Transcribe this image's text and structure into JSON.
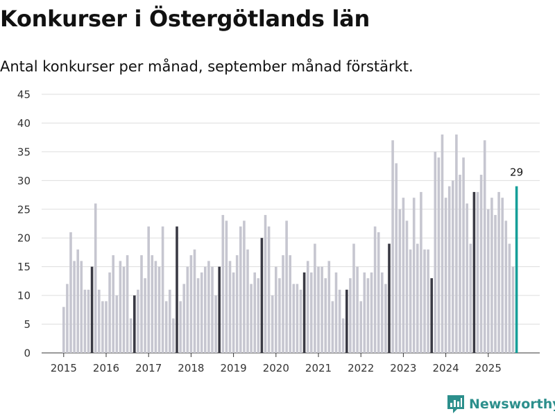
{
  "title": "Konkurser i Östergötlands län",
  "subtitle": "Antal konkurser per månad, september månad förstärkt.",
  "brand": "Newsworthy",
  "colors": {
    "bar": "#c6c6d0",
    "highlight": "#3a3a44",
    "latest": "#159f99",
    "grid": "#dddddd",
    "brand": "#2c8f8c"
  },
  "chart_data": {
    "type": "bar",
    "title": "Konkurser i Östergötlands län",
    "ylabel": "",
    "xlabel": "",
    "ylim": [
      0,
      45
    ],
    "yticks": [
      0,
      5,
      10,
      15,
      20,
      25,
      30,
      35,
      40,
      45
    ],
    "grid": true,
    "start": "2015-01",
    "highlight_month": "september",
    "year_labels": [
      "2015",
      "2016",
      "2017",
      "2018",
      "2019",
      "2020",
      "2021",
      "2022",
      "2023",
      "2024",
      "2025"
    ],
    "values": [
      8,
      12,
      21,
      16,
      18,
      16,
      11,
      11,
      15,
      26,
      11,
      9,
      9,
      14,
      17,
      10,
      16,
      15,
      17,
      6,
      10,
      11,
      17,
      13,
      22,
      17,
      16,
      15,
      22,
      9,
      11,
      6,
      22,
      9,
      12,
      15,
      17,
      18,
      13,
      14,
      15,
      16,
      15,
      10,
      15,
      24,
      23,
      16,
      14,
      17,
      22,
      23,
      18,
      12,
      14,
      13,
      20,
      24,
      22,
      10,
      15,
      13,
      17,
      23,
      17,
      12,
      12,
      11,
      14,
      16,
      14,
      19,
      15,
      15,
      13,
      16,
      9,
      14,
      11,
      6,
      11,
      13,
      19,
      15,
      9,
      14,
      13,
      14,
      22,
      21,
      14,
      12,
      19,
      37,
      33,
      25,
      27,
      23,
      18,
      27,
      19,
      28,
      18,
      18,
      13,
      35,
      34,
      38,
      27,
      29,
      30,
      38,
      31,
      34,
      26,
      19,
      28,
      28,
      31,
      37,
      25,
      27,
      24,
      28,
      27,
      23,
      19,
      15,
      29
    ],
    "latest_label": "29"
  }
}
